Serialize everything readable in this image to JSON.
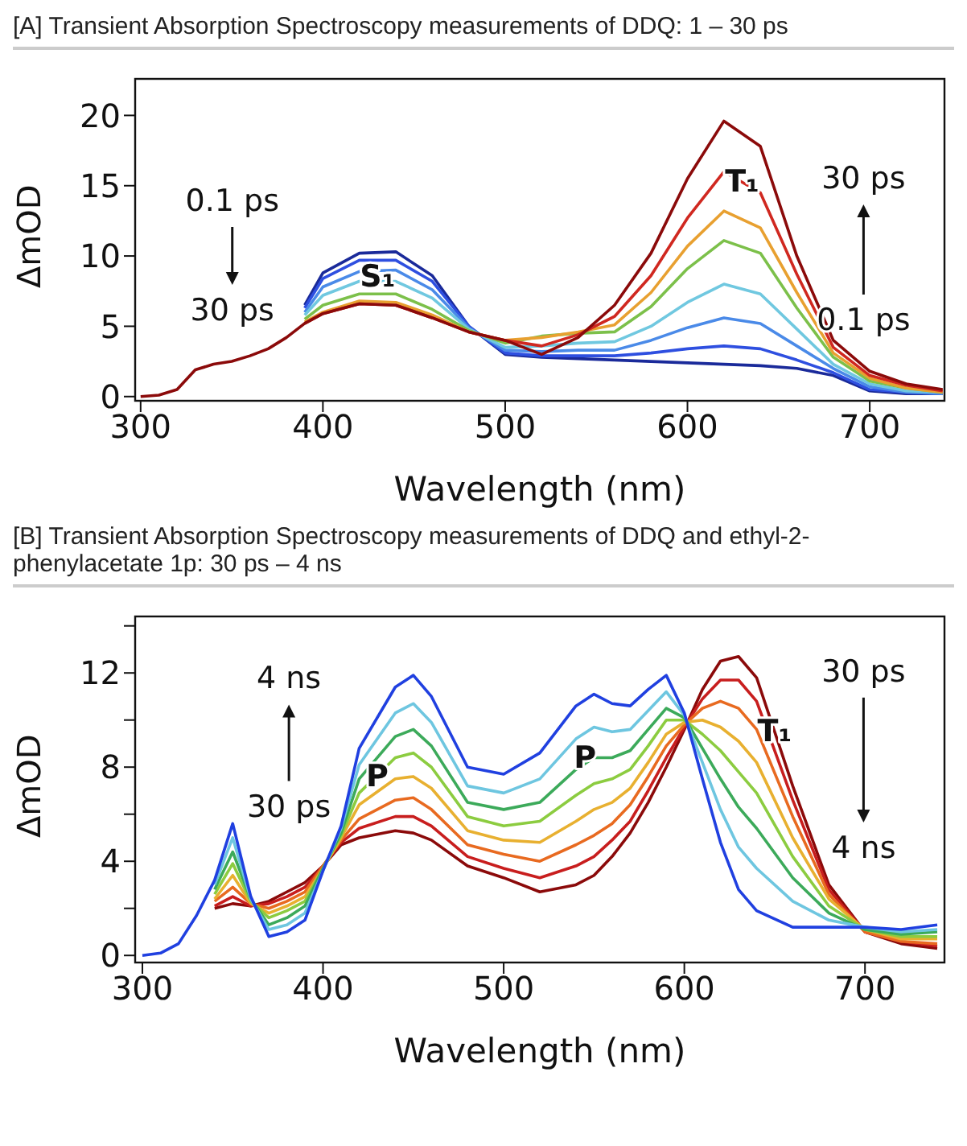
{
  "chart_data": [
    {
      "type": "line",
      "title": "[A] Transient Absorption Spectroscopy measurements of DDQ: 1 – 30 ps",
      "xlabel": "Wavelength (nm)",
      "ylabel": "ΔmOD",
      "line_style": "solid",
      "grid": false,
      "legend": false,
      "xlim": [
        297,
        741
      ],
      "ylim": [
        -0.3,
        22.6
      ],
      "xticks": [
        300,
        400,
        500,
        600,
        700
      ],
      "yticks": [
        0,
        5,
        10,
        15,
        20
      ],
      "x": [
        300,
        310,
        320,
        330,
        340,
        350,
        360,
        370,
        380,
        390,
        400,
        420,
        440,
        460,
        480,
        500,
        520,
        540,
        560,
        580,
        600,
        620,
        640,
        660,
        680,
        700,
        720,
        740
      ],
      "series": [
        {
          "color": "#1a2a9a",
          "values": [
            null,
            null,
            null,
            null,
            null,
            null,
            null,
            null,
            null,
            6.5,
            8.8,
            10.2,
            10.3,
            8.6,
            5.0,
            3.0,
            2.8,
            2.7,
            2.6,
            2.5,
            2.4,
            2.3,
            2.2,
            2.0,
            1.5,
            0.4,
            0.2,
            0.2
          ]
        },
        {
          "color": "#2e4fe0",
          "values": [
            null,
            null,
            null,
            null,
            null,
            null,
            null,
            null,
            null,
            6.3,
            8.4,
            9.7,
            9.7,
            8.2,
            5.0,
            3.1,
            2.9,
            2.9,
            2.9,
            3.1,
            3.4,
            3.6,
            3.4,
            2.6,
            1.7,
            0.5,
            0.3,
            0.2
          ]
        },
        {
          "color": "#4a8ae8",
          "values": [
            null,
            null,
            null,
            null,
            null,
            null,
            null,
            null,
            null,
            6.0,
            7.8,
            8.9,
            9.0,
            7.6,
            4.9,
            3.3,
            3.2,
            3.3,
            3.3,
            4.0,
            4.9,
            5.6,
            5.2,
            3.6,
            2.0,
            0.7,
            0.3,
            0.2
          ]
        },
        {
          "color": "#70c8e0",
          "values": [
            null,
            null,
            null,
            null,
            null,
            null,
            null,
            null,
            null,
            5.8,
            7.2,
            8.2,
            8.2,
            7.0,
            4.8,
            3.5,
            3.6,
            3.8,
            3.9,
            5.0,
            6.7,
            8.0,
            7.3,
            4.8,
            2.3,
            0.9,
            0.4,
            0.3
          ]
        },
        {
          "color": "#7cc04a",
          "values": [
            null,
            null,
            null,
            null,
            null,
            null,
            null,
            null,
            null,
            5.5,
            6.5,
            7.3,
            7.3,
            6.2,
            4.7,
            3.8,
            4.3,
            4.5,
            4.6,
            6.4,
            9.1,
            11.1,
            10.2,
            6.3,
            2.8,
            1.1,
            0.6,
            0.3
          ]
        },
        {
          "color": "#e8a030",
          "values": [
            null,
            null,
            null,
            null,
            null,
            null,
            null,
            null,
            null,
            5.3,
            6.0,
            6.8,
            6.7,
            5.8,
            4.6,
            4.0,
            4.2,
            4.6,
            5.1,
            7.4,
            10.7,
            13.2,
            12.0,
            7.4,
            3.1,
            1.3,
            0.6,
            0.3
          ]
        },
        {
          "color": "#d02820",
          "values": [
            null,
            null,
            null,
            null,
            null,
            null,
            null,
            null,
            null,
            5.2,
            5.9,
            6.6,
            6.5,
            5.6,
            4.6,
            4.0,
            3.6,
            4.4,
            5.7,
            8.6,
            12.7,
            16.0,
            14.5,
            8.7,
            3.5,
            1.5,
            0.8,
            0.4
          ]
        },
        {
          "color": "#8b0a0a",
          "values": [
            0,
            0.1,
            0.5,
            1.9,
            2.3,
            2.5,
            2.9,
            3.4,
            4.2,
            5.2,
            5.9,
            6.6,
            6.5,
            5.6,
            4.6,
            4.0,
            3.0,
            4.2,
            6.5,
            10.2,
            15.5,
            19.6,
            17.8,
            10.0,
            4.0,
            1.8,
            0.9,
            0.5
          ]
        }
      ],
      "annotations": [
        "0.1 ps",
        "30 ps",
        {
          "text": "S₁",
          "x": 430,
          "y": 8.5
        },
        {
          "text": "T₁",
          "x": 630,
          "y": 15.3
        },
        "30 ps",
        "0.1 ps"
      ]
    },
    {
      "type": "line",
      "title": "[B] Transient Absorption Spectroscopy measurements of DDQ and ethyl-2-phenylacetate 1p: 30 ps –  4 ns",
      "xlabel": "Wavelength (nm)",
      "ylabel": "ΔmOD",
      "line_style": "solid",
      "grid": false,
      "legend": false,
      "xlim": [
        296,
        744
      ],
      "ylim": [
        -0.3,
        14.4
      ],
      "xticks": [
        300,
        400,
        500,
        600,
        700
      ],
      "yticks": [
        0,
        {
          "value": 2,
          "label": null
        },
        4,
        {
          "value": 6,
          "label": null
        },
        8,
        {
          "value": 10,
          "label": null
        },
        12,
        {
          "value": 14,
          "label": null
        }
      ],
      "x": [
        300,
        310,
        320,
        330,
        340,
        350,
        360,
        370,
        380,
        390,
        400,
        410,
        420,
        440,
        450,
        460,
        480,
        500,
        520,
        540,
        550,
        560,
        570,
        580,
        590,
        600,
        610,
        620,
        630,
        640,
        660,
        680,
        700,
        720,
        740
      ],
      "series": [
        {
          "color": "#8b0a0a",
          "values": [
            null,
            null,
            null,
            null,
            2.0,
            2.2,
            2.1,
            2.3,
            2.7,
            3.1,
            3.8,
            4.7,
            5.0,
            5.3,
            5.2,
            4.9,
            3.8,
            3.3,
            2.7,
            3.0,
            3.4,
            4.2,
            5.2,
            6.5,
            8.0,
            9.6,
            11.3,
            12.5,
            12.7,
            11.8,
            7.2,
            3.0,
            1.0,
            0.5,
            0.3
          ]
        },
        {
          "color": "#c81e1e",
          "values": [
            null,
            null,
            null,
            null,
            2.1,
            2.5,
            2.1,
            2.2,
            2.5,
            2.9,
            3.8,
            4.8,
            5.4,
            5.9,
            5.9,
            5.5,
            4.2,
            3.7,
            3.3,
            3.8,
            4.2,
            4.9,
            5.7,
            7.0,
            8.4,
            9.7,
            10.9,
            11.7,
            11.7,
            10.8,
            6.6,
            2.8,
            1.0,
            0.6,
            0.4
          ]
        },
        {
          "color": "#e86a20",
          "values": [
            null,
            null,
            null,
            null,
            2.3,
            2.9,
            2.2,
            2.0,
            2.3,
            2.7,
            3.8,
            4.9,
            5.8,
            6.6,
            6.7,
            6.2,
            4.7,
            4.3,
            4.0,
            4.7,
            5.1,
            5.6,
            6.4,
            7.6,
            8.9,
            9.8,
            10.5,
            10.8,
            10.5,
            9.6,
            5.9,
            2.6,
            1.0,
            0.6,
            0.5
          ]
        },
        {
          "color": "#e8b030",
          "values": [
            null,
            null,
            null,
            null,
            2.4,
            3.4,
            2.2,
            1.8,
            2.1,
            2.5,
            3.7,
            5.0,
            6.4,
            7.5,
            7.6,
            7.1,
            5.3,
            4.9,
            4.8,
            5.7,
            6.2,
            6.5,
            7.1,
            8.2,
            9.4,
            9.9,
            10.0,
            9.7,
            9.1,
            8.2,
            5.0,
            2.4,
            1.1,
            0.7,
            0.7
          ]
        },
        {
          "color": "#8ccc40",
          "values": [
            null,
            null,
            null,
            null,
            2.6,
            3.9,
            2.3,
            1.6,
            1.9,
            2.3,
            3.7,
            5.1,
            6.9,
            8.4,
            8.6,
            8.0,
            5.9,
            5.5,
            5.7,
            6.8,
            7.3,
            7.5,
            7.9,
            8.9,
            10.0,
            10.0,
            9.4,
            8.7,
            7.8,
            6.9,
            4.2,
            2.1,
            1.1,
            0.8,
            0.8
          ]
        },
        {
          "color": "#3caa5a",
          "values": [
            null,
            null,
            null,
            null,
            2.8,
            4.4,
            2.4,
            1.3,
            1.6,
            2.1,
            3.7,
            5.2,
            7.5,
            9.3,
            9.6,
            8.9,
            6.5,
            6.2,
            6.5,
            7.9,
            8.4,
            8.4,
            8.7,
            9.6,
            10.5,
            10.1,
            8.8,
            7.5,
            6.3,
            5.4,
            3.3,
            1.8,
            1.1,
            0.9,
            1.0
          ]
        },
        {
          "color": "#6ec6e0",
          "values": [
            null,
            null,
            null,
            null,
            3.0,
            5.0,
            2.4,
            1.1,
            1.3,
            1.8,
            3.6,
            5.4,
            8.1,
            10.3,
            10.7,
            9.9,
            7.2,
            6.9,
            7.5,
            9.2,
            9.7,
            9.5,
            9.6,
            10.4,
            11.2,
            10.2,
            8.2,
            6.2,
            4.6,
            3.7,
            2.3,
            1.5,
            1.2,
            1.0,
            1.1
          ]
        },
        {
          "color": "#2040e0",
          "values": [
            0,
            0.1,
            0.5,
            1.7,
            3.2,
            5.6,
            2.5,
            0.8,
            1.0,
            1.5,
            3.6,
            5.5,
            8.8,
            11.4,
            11.9,
            11.0,
            8.0,
            7.7,
            8.6,
            10.6,
            11.1,
            10.7,
            10.6,
            11.3,
            11.9,
            10.3,
            7.5,
            4.8,
            2.8,
            1.9,
            1.2,
            1.2,
            1.2,
            1.1,
            1.3
          ]
        }
      ],
      "annotations": [
        "4 ns",
        "30 ps",
        {
          "text": "P",
          "x": 430,
          "y": 7.6
        },
        {
          "text": "P",
          "x": 545,
          "y": 8.4
        },
        {
          "text": "T₁",
          "x": 650,
          "y": 9.5
        },
        "30 ps",
        "4 ns"
      ]
    }
  ]
}
